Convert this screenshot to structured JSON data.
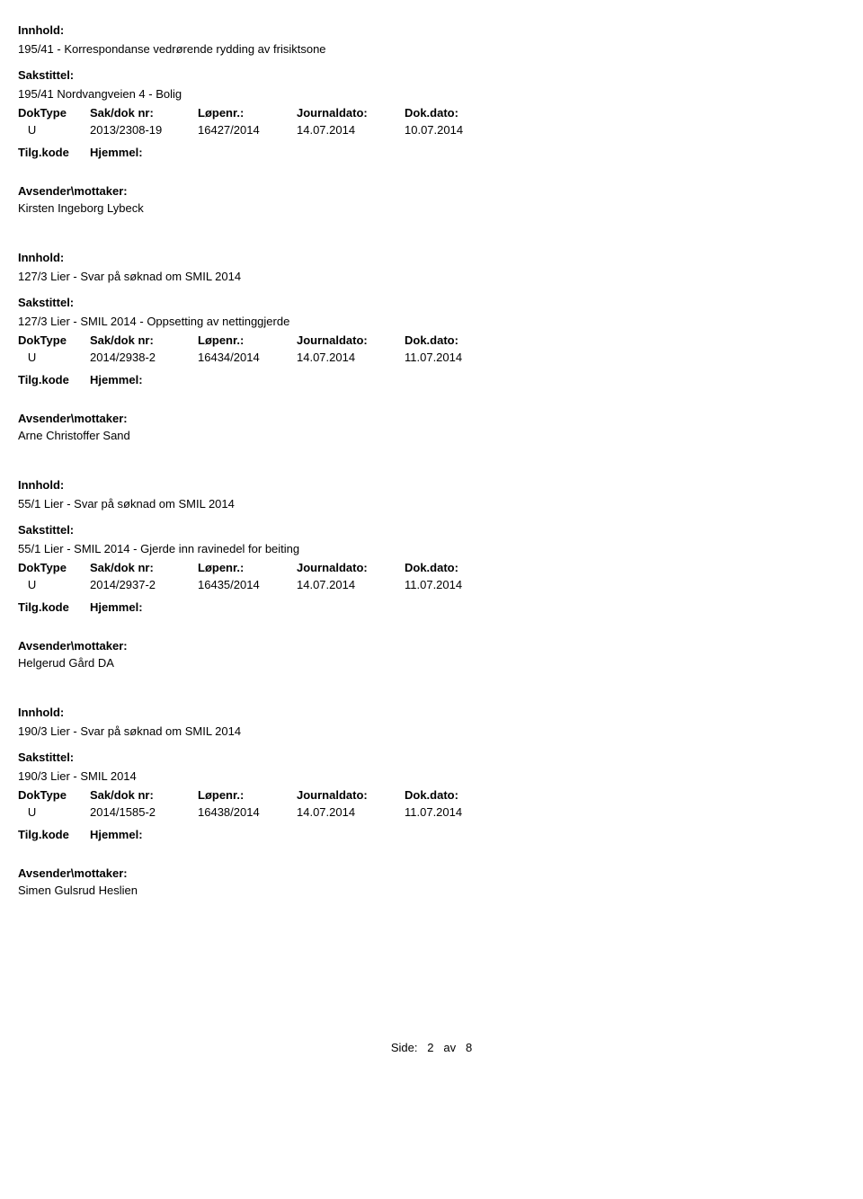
{
  "labels": {
    "innhold": "Innhold:",
    "sakstittel": "Sakstittel:",
    "doktype": "DokType",
    "sakdok": "Sak/dok nr:",
    "lopenr": "Løpenr.:",
    "journaldato": "Journaldato:",
    "dokdato": "Dok.dato:",
    "tilgkode": "Tilg.kode",
    "hjemmel": "Hjemmel:",
    "avsender": "Avsender\\mottaker:"
  },
  "records": [
    {
      "innhold": "195/41 - Korrespondanse vedrørende rydding av frisiktsone",
      "sakstittel": "195/41 Nordvangveien 4 - Bolig",
      "doktype": "U",
      "sakdok": "2013/2308-19",
      "lopenr": "16427/2014",
      "journaldato": "14.07.2014",
      "dokdato": "10.07.2014",
      "avsender": "Kirsten Ingeborg Lybeck"
    },
    {
      "innhold": "127/3 Lier - Svar på søknad om SMIL 2014",
      "sakstittel": "127/3 Lier - SMIL 2014 - Oppsetting av nettinggjerde",
      "doktype": "U",
      "sakdok": "2014/2938-2",
      "lopenr": "16434/2014",
      "journaldato": "14.07.2014",
      "dokdato": "11.07.2014",
      "avsender": "Arne Christoffer Sand"
    },
    {
      "innhold": "55/1 Lier - Svar på søknad om SMIL 2014",
      "sakstittel": "55/1 Lier - SMIL 2014 - Gjerde inn ravinedel for beiting",
      "doktype": "U",
      "sakdok": "2014/2937-2",
      "lopenr": "16435/2014",
      "journaldato": "14.07.2014",
      "dokdato": "11.07.2014",
      "avsender": "Helgerud Gård DA"
    },
    {
      "innhold": "190/3 Lier - Svar på søknad om SMIL 2014",
      "sakstittel": "190/3 Lier - SMIL 2014",
      "doktype": "U",
      "sakdok": "2014/1585-2",
      "lopenr": "16438/2014",
      "journaldato": "14.07.2014",
      "dokdato": "11.07.2014",
      "avsender": "Simen Gulsrud Heslien"
    }
  ],
  "footer": {
    "side_label": "Side:",
    "current": "2",
    "av": "av",
    "total": "8"
  }
}
